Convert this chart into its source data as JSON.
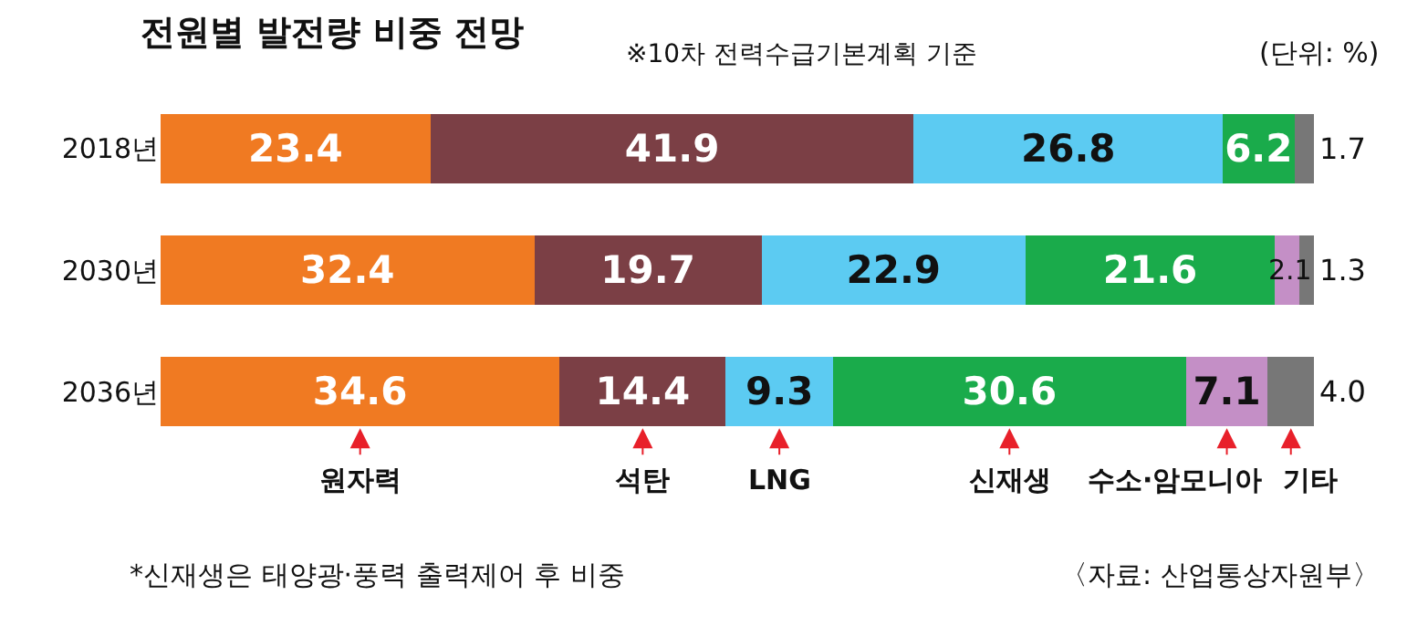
{
  "chart_data": {
    "type": "bar",
    "orientation": "horizontal",
    "stacked": true,
    "title": "전원별 발전량 비중 전망",
    "subtitle": "※10차 전력수급기본계획 기준",
    "categories": [
      "2018년",
      "2030년",
      "2036년"
    ],
    "series": [
      {
        "name": "원자력",
        "color": "#f07a22",
        "values": [
          23.4,
          32.4,
          34.6
        ],
        "value_labels": [
          "23.4",
          "32.4",
          "34.6"
        ]
      },
      {
        "name": "석탄",
        "color": "#7b3f45",
        "values": [
          41.9,
          19.7,
          14.4
        ],
        "value_labels": [
          "41.9",
          "19.7",
          "14.4"
        ]
      },
      {
        "name": "LNG",
        "color": "#5ccbf2",
        "values": [
          26.8,
          22.9,
          9.3
        ],
        "value_labels": [
          "26.8",
          "22.9",
          "9.3"
        ]
      },
      {
        "name": "신재생",
        "color": "#1aab4b",
        "values": [
          6.2,
          21.6,
          30.6
        ],
        "value_labels": [
          "6.2",
          "21.6",
          "30.6"
        ]
      },
      {
        "name": "수소·암모니아",
        "color": "#c48fc6",
        "values": [
          null,
          2.1,
          7.1
        ],
        "value_labels": [
          null,
          "2.1",
          "7.1"
        ]
      },
      {
        "name": "기타",
        "color": "#777777",
        "values": [
          1.7,
          1.3,
          4.0
        ],
        "value_labels": [
          "1.7",
          "1.3",
          "4.0"
        ]
      }
    ],
    "annotations": [
      "(단위: %)",
      "*신재생은 태양광·풍력 출력제어 후 비중",
      "〈자료: 산업통상자원부〉"
    ]
  }
}
